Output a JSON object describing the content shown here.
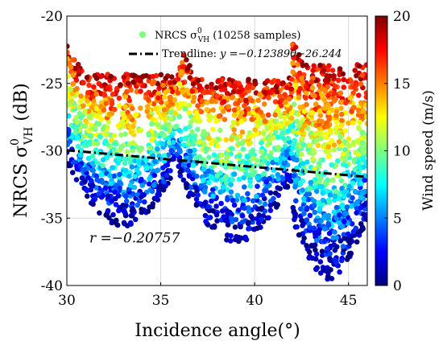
{
  "chart_data": {
    "type": "scatter",
    "x": {
      "label": "Incidence angle(°)",
      "lim": [
        30,
        46
      ],
      "ticks": [
        30,
        35,
        40,
        45
      ]
    },
    "y": {
      "label_main": "NRCS σ",
      "label_sup": "0",
      "label_sub": "VH",
      "label_unit": " (dB)",
      "lim": [
        -40,
        -20
      ],
      "ticks": [
        -20,
        -25,
        -30,
        -35,
        -40
      ]
    },
    "grid": true,
    "legend": {
      "placement": "top",
      "scatter_entry": {
        "prefix": "NRCS σ",
        "sup": "0",
        "sub": "VH",
        "suffix": " (10258 samples)",
        "color": "#7cff79"
      },
      "trend_entry": {
        "prefix": "Trendline: ",
        "formula": "y =−0.12389θ−26.244",
        "color": "#000000"
      }
    },
    "trendline": {
      "slope": -0.12389,
      "intercept": -26.244
    },
    "annotation": {
      "text": "r =−0.20757",
      "x": 31.2,
      "y": -36.8
    },
    "colorbar": {
      "label": "Wind speed (m/s)",
      "range": [
        0,
        20
      ],
      "ticks": [
        0,
        5,
        10,
        15,
        20
      ],
      "colormap": "jet"
    },
    "sample_count": 10258,
    "clusters": [
      {
        "x_range": [
          30,
          36
        ],
        "y_center": -30.0,
        "y_spread": 4.5,
        "y_top_edge": -24.3,
        "y_bottom_edge": -35.6
      },
      {
        "x_range": [
          36,
          42
        ],
        "y_center": -31.2,
        "y_spread": 4.8,
        "y_top_edge": -24.6,
        "y_bottom_edge": -36.8
      },
      {
        "x_range": [
          42,
          46
        ],
        "y_center": -31.8,
        "y_spread": 5.2,
        "y_top_edge": -23.6,
        "y_bottom_edge": -39.6
      }
    ]
  }
}
